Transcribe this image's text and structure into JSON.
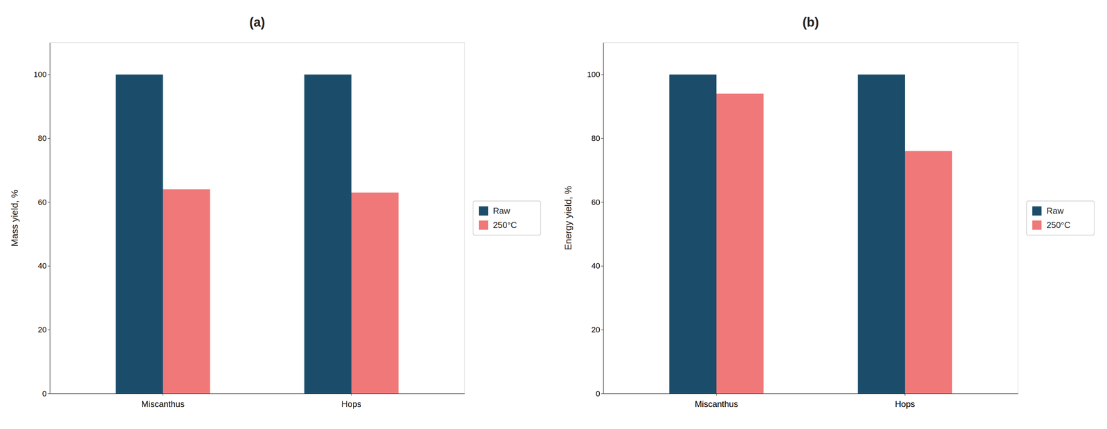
{
  "chart_data": [
    {
      "type": "bar",
      "title": "(a)",
      "y_label": "Mass yield, %",
      "categories": [
        "Miscanthus",
        "Hops"
      ],
      "series": [
        {
          "name": "Raw",
          "color": "#1b4d6a",
          "values": [
            100,
            100
          ]
        },
        {
          "name": "250°C",
          "color": "#f07878",
          "values": [
            64,
            63
          ]
        }
      ],
      "ylim": [
        0,
        110
      ],
      "yticks": [
        0,
        20,
        40,
        60,
        80,
        100
      ],
      "grid": false,
      "legend": "right"
    },
    {
      "type": "bar",
      "title": "(b)",
      "y_label": "Energy yield, %",
      "categories": [
        "Miscanthus",
        "Hops"
      ],
      "series": [
        {
          "name": "Raw",
          "color": "#1b4d6a",
          "values": [
            100,
            100
          ]
        },
        {
          "name": "250°C",
          "color": "#f07878",
          "values": [
            94,
            76
          ]
        }
      ],
      "ylim": [
        0,
        110
      ],
      "yticks": [
        0,
        20,
        40,
        60,
        80,
        100
      ],
      "grid": false,
      "legend": "right"
    }
  ]
}
